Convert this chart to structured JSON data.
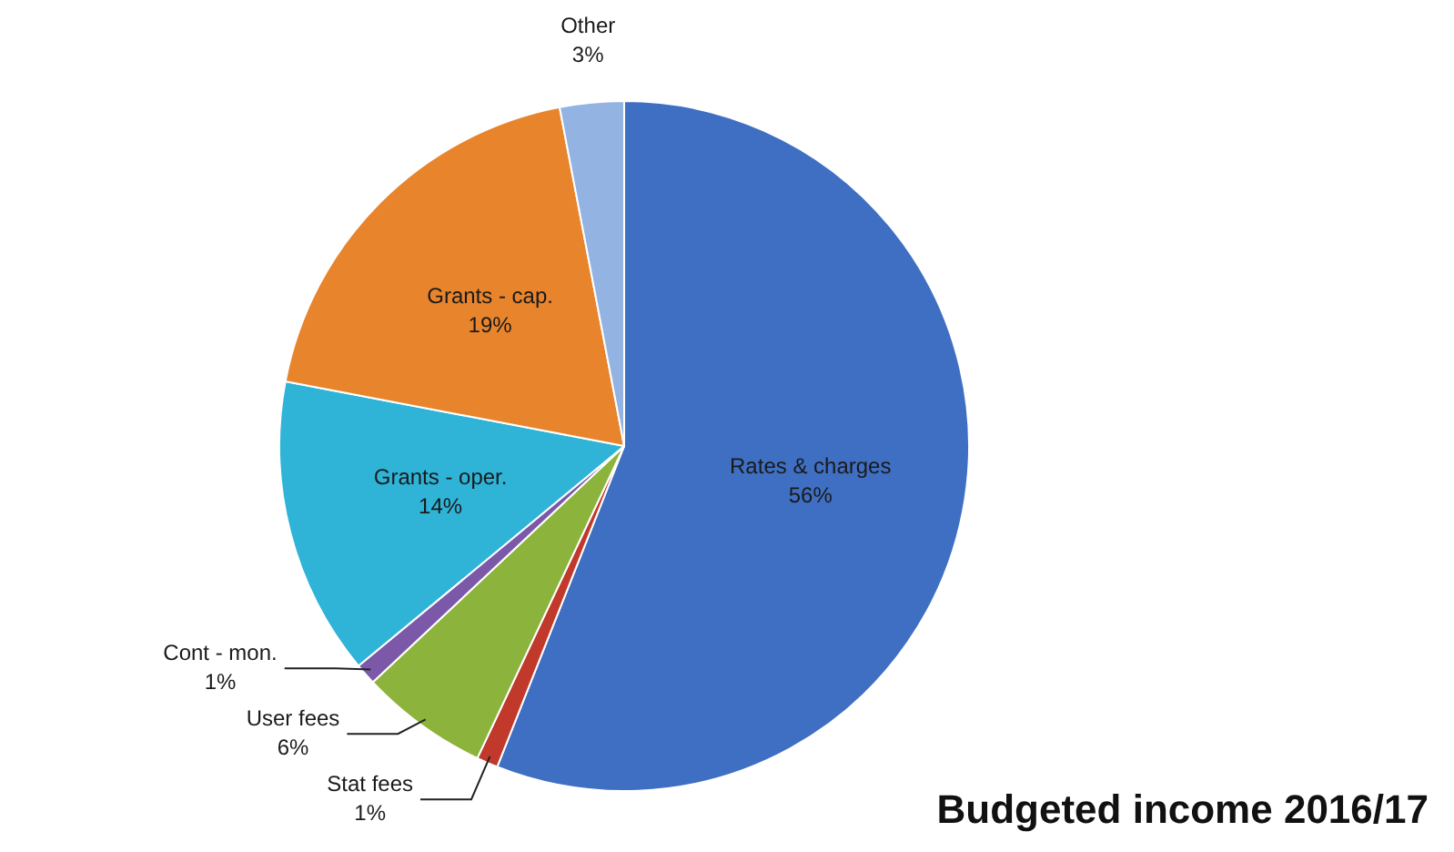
{
  "chart_data": {
    "type": "pie",
    "title": "Budgeted income 2016/17",
    "categories": [
      "Rates & charges",
      "Stat fees",
      "User fees",
      "Cont - mon.",
      "Grants - oper.",
      "Grants - cap.",
      "Other"
    ],
    "values": [
      56,
      1,
      6,
      1,
      14,
      19,
      3
    ],
    "value_labels": [
      "56%",
      "1%",
      "6%",
      "1%",
      "14%",
      "19%",
      "3%"
    ],
    "colors": [
      "#3f6fc2",
      "#c0392b",
      "#8cb43c",
      "#7b59a8",
      "#2fb4d8",
      "#e8842c",
      "#93b3e3"
    ],
    "legend": false
  }
}
